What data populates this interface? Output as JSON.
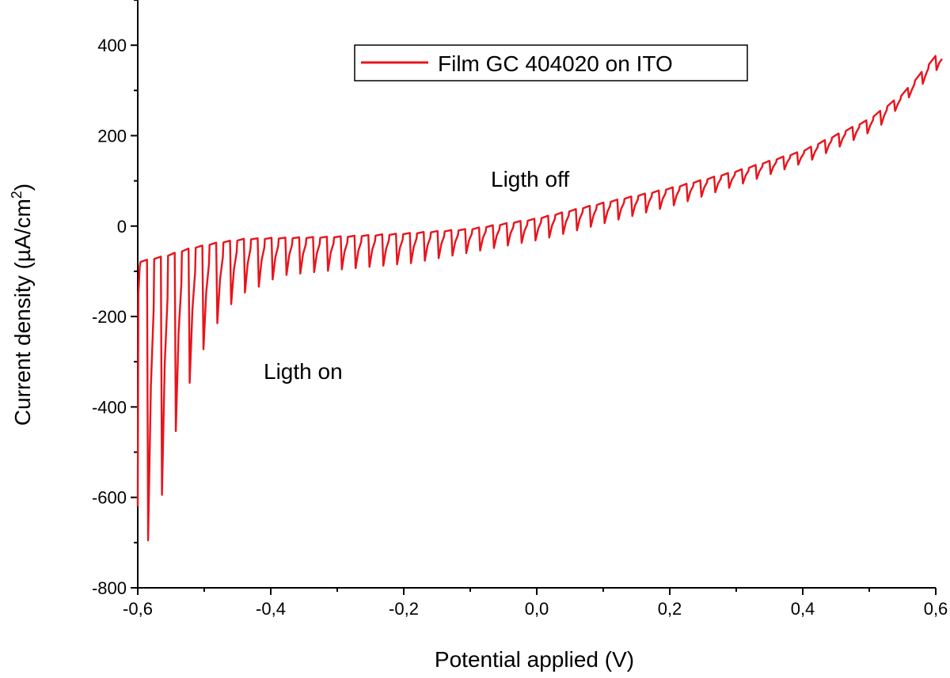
{
  "chart_data": {
    "type": "line",
    "xlabel": "Potential applied (V)",
    "ylabel": "Current density (µA/cm²)",
    "ylabel_main": "Current density (µA/cm",
    "ylabel_sup": "2",
    "ylabel_close": ")",
    "xlim": [
      -0.6,
      0.6
    ],
    "ylim": [
      -800,
      500
    ],
    "x_ticks": [
      -0.6,
      -0.4,
      -0.2,
      0.0,
      0.2,
      0.4,
      0.6
    ],
    "x_tick_labels": [
      "-0,6",
      "-0,4",
      "-0,2",
      "0,0",
      "0,2",
      "0,4",
      "0,6"
    ],
    "y_ticks": [
      -800,
      -600,
      -400,
      -200,
      0,
      200,
      400
    ],
    "y_tick_labels": [
      "-800",
      "-600",
      "-400",
      "-200",
      "0",
      "200",
      "400"
    ],
    "grid": false,
    "legend_position": "top-center",
    "series": [
      {
        "name": "Film GC 404020 on ITO",
        "color": "#e8141c",
        "pattern": "chopped-light",
        "dark_current": [
          [
            -0.598,
            -80
          ],
          [
            -0.56,
            -68
          ],
          [
            -0.52,
            -50
          ],
          [
            -0.48,
            -38
          ],
          [
            -0.44,
            -30
          ],
          [
            -0.4,
            -28
          ],
          [
            -0.3,
            -25
          ],
          [
            -0.2,
            -18
          ],
          [
            -0.1,
            -8
          ],
          [
            0.0,
            15
          ],
          [
            0.1,
            50
          ],
          [
            0.2,
            82
          ],
          [
            0.3,
            120
          ],
          [
            0.4,
            165
          ],
          [
            0.5,
            235
          ],
          [
            0.55,
            290
          ],
          [
            0.6,
            375
          ]
        ],
        "photo_current_peak": [
          [
            -0.59,
            -695
          ],
          [
            -0.565,
            -525
          ],
          [
            -0.545,
            -390
          ],
          [
            -0.52,
            -295
          ],
          [
            -0.5,
            -232
          ],
          [
            -0.475,
            -178
          ],
          [
            -0.455,
            -150
          ],
          [
            -0.42,
            -128
          ],
          [
            -0.4,
            -110
          ],
          [
            -0.3,
            -95
          ],
          [
            -0.2,
            -82
          ],
          [
            -0.1,
            -55
          ],
          [
            0.0,
            -28
          ],
          [
            0.1,
            10
          ],
          [
            0.2,
            48
          ],
          [
            0.3,
            95
          ],
          [
            0.4,
            145
          ],
          [
            0.5,
            215
          ],
          [
            0.6,
            360
          ]
        ]
      }
    ],
    "annotations": [
      {
        "text": "Ligth off",
        "x": -0.07,
        "y": 95
      },
      {
        "text": "Ligth on",
        "x": -0.41,
        "y": -320
      }
    ]
  }
}
